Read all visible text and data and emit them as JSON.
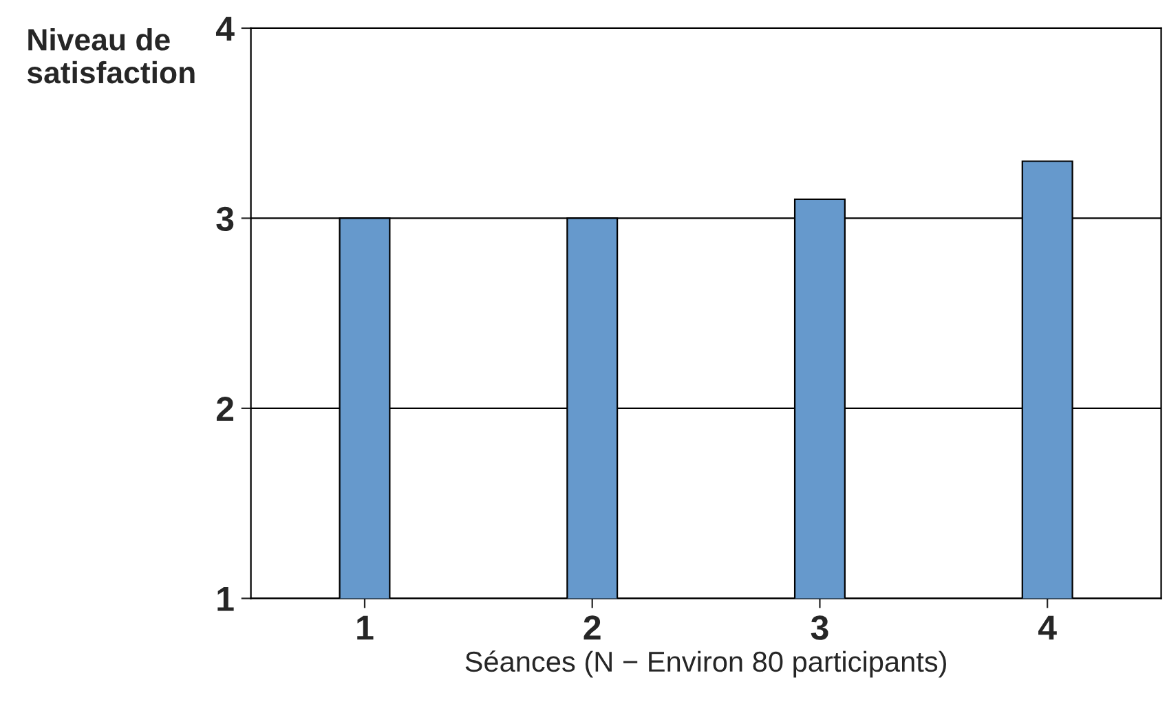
{
  "chart_data": {
    "type": "bar",
    "ylabel": "Niveau de\nsatisfaction",
    "xlabel": "Séances (N − Environ 80 participants)",
    "categories": [
      "1",
      "2",
      "3",
      "4"
    ],
    "values": [
      3.0,
      3.0,
      3.1,
      3.3
    ],
    "color": "#6699cc",
    "ylim": [
      1,
      4
    ],
    "yticks": [
      1,
      2,
      3,
      4
    ],
    "grid": "y"
  }
}
